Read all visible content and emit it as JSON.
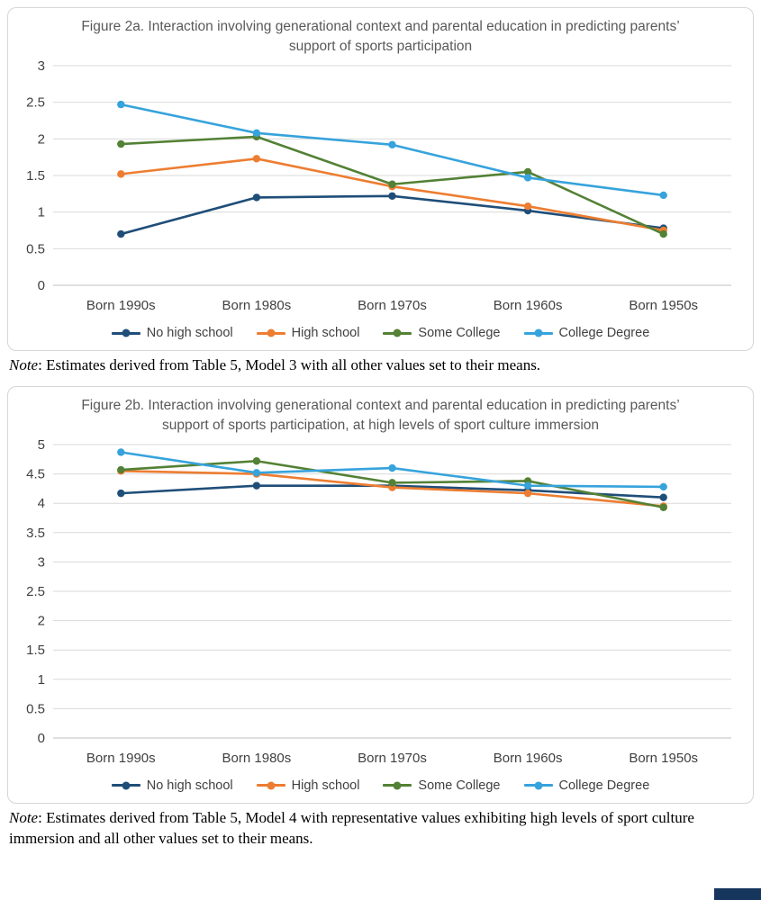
{
  "chart_data": [
    {
      "type": "line",
      "title": "Figure 2a. Interaction involving generational context and parental education in predicting parents’ support of sports participation",
      "categories": [
        "Born 1990s",
        "Born 1980s",
        "Born 1970s",
        "Born 1960s",
        "Born 1950s"
      ],
      "series": [
        {
          "name": "No high school",
          "color": "#1F4E79",
          "values": [
            0.7,
            1.2,
            1.22,
            1.02,
            0.78
          ]
        },
        {
          "name": "High school",
          "color": "#ED7D31",
          "values": [
            1.52,
            1.73,
            1.35,
            1.08,
            0.75
          ]
        },
        {
          "name": "Some College",
          "color": "#538135",
          "values": [
            1.93,
            2.03,
            1.38,
            1.55,
            0.7
          ]
        },
        {
          "name": "College Degree",
          "color": "#36A3DC",
          "values": [
            2.47,
            2.08,
            1.92,
            1.47,
            1.23
          ]
        }
      ],
      "xlabel": "",
      "ylabel": "",
      "ylim": [
        0,
        3
      ],
      "ytick_step": 0.5,
      "grid": true,
      "legend_position": "bottom",
      "note": {
        "label": "Note",
        "text": ": Estimates derived from Table 5, Model 3 with all other values set to their means."
      }
    },
    {
      "type": "line",
      "title": "Figure 2b. Interaction involving generational context and parental education in predicting parents’ support of sports participation, at high levels of sport culture immersion",
      "categories": [
        "Born 1990s",
        "Born 1980s",
        "Born 1970s",
        "Born 1960s",
        "Born 1950s"
      ],
      "series": [
        {
          "name": "No high school",
          "color": "#1F4E79",
          "values": [
            4.17,
            4.3,
            4.3,
            4.22,
            4.1
          ]
        },
        {
          "name": "High school",
          "color": "#ED7D31",
          "values": [
            4.55,
            4.5,
            4.27,
            4.17,
            3.95
          ]
        },
        {
          "name": "Some College",
          "color": "#538135",
          "values": [
            4.57,
            4.72,
            4.35,
            4.38,
            3.93
          ]
        },
        {
          "name": "College Degree",
          "color": "#36A3DC",
          "values": [
            4.87,
            4.52,
            4.6,
            4.3,
            4.28
          ]
        }
      ],
      "xlabel": "",
      "ylabel": "",
      "ylim": [
        0,
        5
      ],
      "ytick_step": 0.5,
      "grid": true,
      "legend_position": "bottom",
      "note": {
        "label": "Note",
        "text": ": Estimates derived from Table 5, Model 4 with representative values exhibiting high levels of sport culture immersion and all other values set to their means."
      }
    }
  ]
}
